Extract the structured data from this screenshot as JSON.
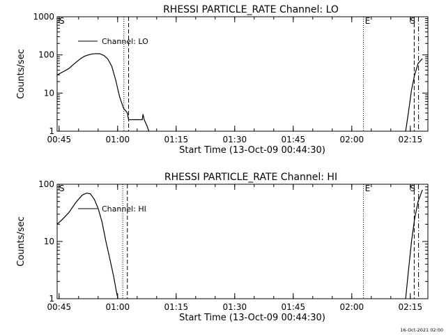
{
  "footer_timestamp": "16-Oct-2021 02:00",
  "chart_data": [
    {
      "type": "line",
      "title": "RHESSI PARTICLE_RATE Channel: LO",
      "xlabel": "Start Time (13-Oct-09 00:44:30)",
      "ylabel": "Counts/sec",
      "yscale": "log",
      "xlim_minutes": [
        0,
        95
      ],
      "ylim": [
        1,
        1000
      ],
      "x_tick_labels": [
        "00:45",
        "01:00",
        "01:15",
        "01:30",
        "01:45",
        "02:00",
        "02:15"
      ],
      "y_tick_labels": [
        "1",
        "10",
        "100",
        "1000"
      ],
      "legend": "Channel: LO",
      "legend_position": "top-left",
      "marker_labels": [
        "S",
        "E",
        "S"
      ],
      "markers": [
        {
          "t": 17.1,
          "style": "dotted"
        },
        {
          "t": 18.3,
          "style": "dashed"
        },
        {
          "t": 78.5,
          "style": "dotted"
        },
        {
          "t": 91.5,
          "style": "dashed"
        },
        {
          "t": 92.6,
          "style": "dashdot"
        }
      ],
      "series": [
        {
          "name": "Channel: LO",
          "segments": [
            [
              [
                0.0,
                30
              ],
              [
                1.5,
                36
              ],
              [
                3.0,
                44
              ],
              [
                4.5,
                60
              ],
              [
                6.0,
                80
              ],
              [
                7.0,
                92
              ],
              [
                8.0,
                100
              ],
              [
                9.0,
                106
              ],
              [
                10.0,
                108
              ],
              [
                11.0,
                107
              ],
              [
                12.0,
                96
              ],
              [
                13.0,
                78
              ],
              [
                14.0,
                50
              ],
              [
                15.0,
                22
              ],
              [
                16.0,
                8
              ],
              [
                17.0,
                4
              ],
              [
                17.5,
                3.5
              ],
              [
                18.0,
                3
              ],
              [
                18.3,
                2
              ],
              [
                19.0,
                2
              ],
              [
                20.0,
                2
              ],
              [
                21.0,
                2
              ],
              [
                21.8,
                2
              ],
              [
                22.0,
                2.8
              ],
              [
                22.3,
                2
              ],
              [
                23.0,
                1.4
              ],
              [
                23.5,
                1
              ]
            ],
            [
              [
                89.3,
                1
              ],
              [
                90.0,
                3
              ],
              [
                90.8,
                12
              ],
              [
                91.6,
                30
              ],
              [
                92.5,
                60
              ],
              [
                93.6,
                80
              ]
            ]
          ]
        }
      ]
    },
    {
      "type": "line",
      "title": "RHESSI PARTICLE_RATE Channel: HI",
      "xlabel": "Start Time (13-Oct-09 00:44:30)",
      "ylabel": "Counts/sec",
      "yscale": "log",
      "xlim_minutes": [
        0,
        95
      ],
      "ylim": [
        1,
        100
      ],
      "x_tick_labels": [
        "00:45",
        "01:00",
        "01:15",
        "01:30",
        "01:45",
        "02:00",
        "02:15"
      ],
      "y_tick_labels": [
        "1",
        "10",
        "100"
      ],
      "legend": "Channel: HI",
      "legend_position": "top-left",
      "marker_labels": [
        "S",
        "E",
        "S"
      ],
      "markers": [
        {
          "t": 16.8,
          "style": "dotted"
        },
        {
          "t": 18.0,
          "style": "dashed"
        },
        {
          "t": 78.5,
          "style": "dotted"
        },
        {
          "t": 91.5,
          "style": "dashed"
        },
        {
          "t": 92.6,
          "style": "dashdot"
        }
      ],
      "series": [
        {
          "name": "Channel: HI",
          "segments": [
            [
              [
                0.0,
                20
              ],
              [
                1.5,
                25
              ],
              [
                3.0,
                32
              ],
              [
                4.5,
                45
              ],
              [
                5.5,
                55
              ],
              [
                6.5,
                65
              ],
              [
                7.5,
                70
              ],
              [
                8.5,
                68
              ],
              [
                9.5,
                55
              ],
              [
                10.5,
                38
              ],
              [
                11.5,
                22
              ],
              [
                12.5,
                10
              ],
              [
                13.5,
                5
              ],
              [
                14.5,
                2.4
              ],
              [
                15.3,
                1.2
              ],
              [
                15.6,
                1
              ]
            ],
            [
              [
                89.3,
                1
              ],
              [
                90.0,
                3
              ],
              [
                90.8,
                10
              ],
              [
                91.6,
                25
              ],
              [
                92.5,
                50
              ],
              [
                93.6,
                80
              ]
            ]
          ]
        }
      ]
    }
  ]
}
